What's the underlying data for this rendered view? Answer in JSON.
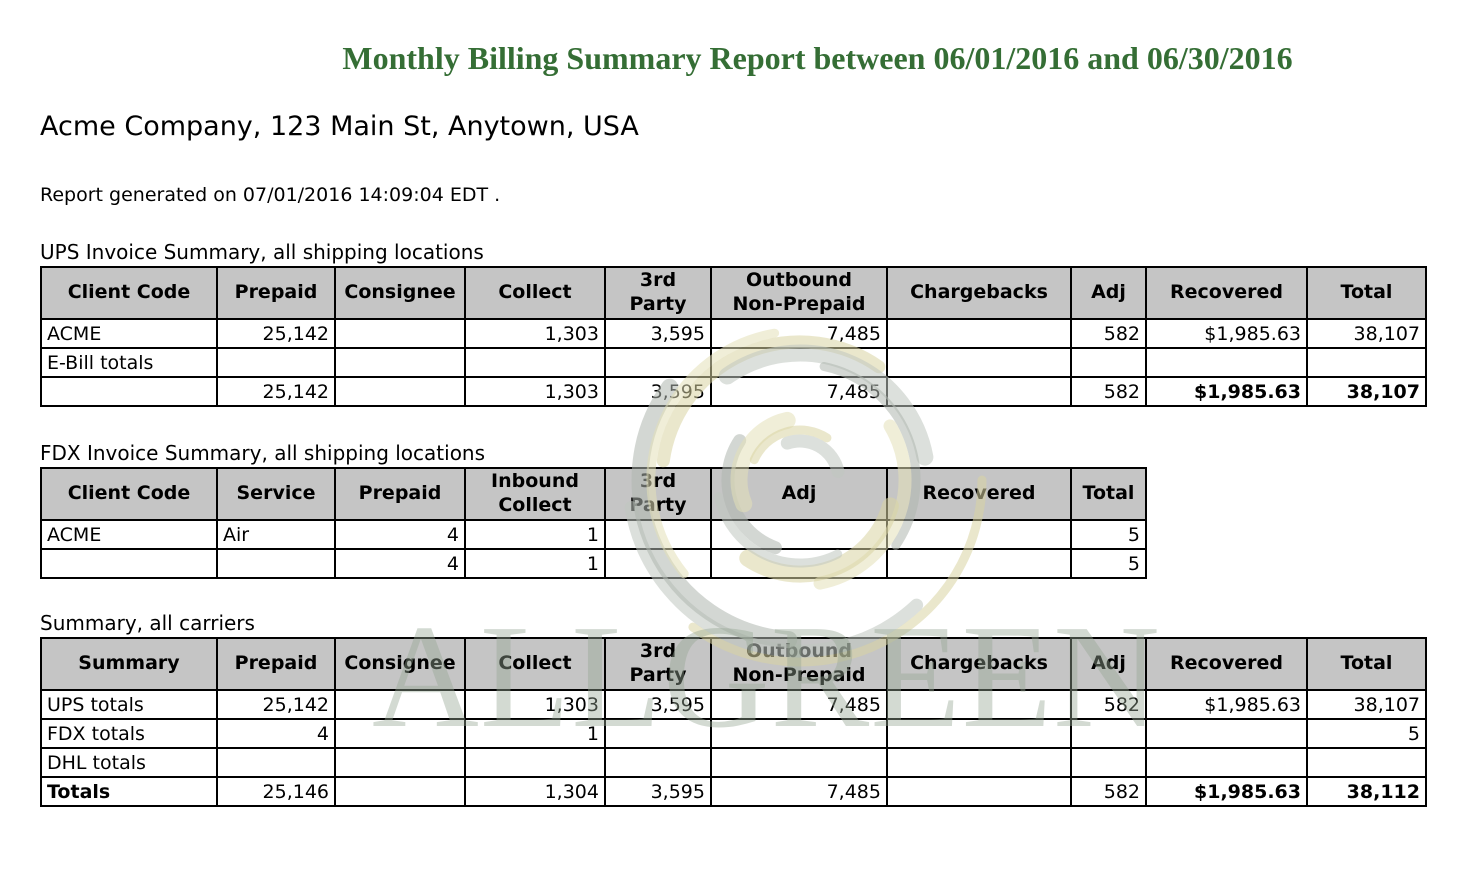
{
  "title": "Monthly Billing Summary Report between 06/01/2016 and 06/30/2016",
  "company_line": "Acme Company, 123 Main St, Anytown, USA",
  "generated_line": "Report generated on 07/01/2016 14:09:04 EDT .",
  "watermark": {
    "text": "ALLGREEN"
  },
  "colors": {
    "title_green": "#356e35",
    "header_bg": "#c5c5c5",
    "watermark_text": "#c9d1c6",
    "watermark_swirl_khaki": "#d8d3a2",
    "watermark_swirl_gray": "#c0c6c0"
  },
  "tables": [
    {
      "caption": "UPS Invoice Summary, all shipping locations",
      "headers": [
        "Client Code",
        "Prepaid",
        "Consignee",
        "Collect",
        "3rd\nParty",
        "Outbound\nNon-Prepaid",
        "Chargebacks",
        "Adj",
        "Recovered",
        "Total"
      ],
      "rows": [
        {
          "cells": [
            "ACME",
            "25,142",
            "",
            "1,303",
            "3,595",
            "7,485",
            "",
            "582",
            "$1,985.63",
            "38,107"
          ]
        },
        {
          "cells": [
            "E-Bill totals",
            "",
            "",
            "",
            "",
            "",
            "",
            "",
            "",
            ""
          ]
        },
        {
          "cells": [
            "",
            "25,142",
            "",
            "1,303",
            "3,595",
            "7,485",
            "",
            "582",
            "$1,985.63",
            "38,107"
          ],
          "bold": [
            8,
            9
          ]
        }
      ]
    },
    {
      "caption": "FDX Invoice Summary, all shipping locations",
      "headers": [
        "Client Code",
        "Service",
        "Prepaid",
        "Inbound\nCollect",
        "3rd\nParty",
        "Adj",
        "Recovered",
        "Total"
      ],
      "rows": [
        {
          "cells": [
            "ACME",
            "Air",
            "4",
            "1",
            "",
            "",
            "",
            "5"
          ]
        },
        {
          "cells": [
            "",
            "",
            "4",
            "1",
            "",
            "",
            "",
            "5"
          ]
        }
      ]
    },
    {
      "caption": "Summary, all carriers",
      "headers": [
        "Summary",
        "Prepaid",
        "Consignee",
        "Collect",
        "3rd\nParty",
        "Outbound\nNon-Prepaid",
        "Chargebacks",
        "Adj",
        "Recovered",
        "Total"
      ],
      "rows": [
        {
          "cells": [
            "UPS totals",
            "25,142",
            "",
            "1,303",
            "3,595",
            "7,485",
            "",
            "582",
            "$1,985.63",
            "38,107"
          ]
        },
        {
          "cells": [
            "FDX totals",
            "4",
            "",
            "1",
            "",
            "",
            "",
            "",
            "",
            "5"
          ]
        },
        {
          "cells": [
            "DHL totals",
            "",
            "",
            "",
            "",
            "",
            "",
            "",
            "",
            ""
          ]
        },
        {
          "cells": [
            "Totals",
            "25,146",
            "",
            "1,304",
            "3,595",
            "7,485",
            "",
            "582",
            "$1,985.63",
            "38,112"
          ],
          "bold": [
            0,
            8,
            9
          ]
        }
      ]
    }
  ]
}
